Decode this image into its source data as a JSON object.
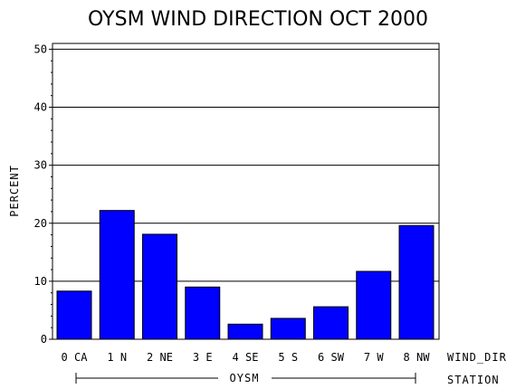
{
  "chart_data": {
    "type": "bar",
    "title": "OYSM WIND DIRECTION OCT 2000",
    "ylabel": "PERCENT",
    "xlabel": "WIND_DIR",
    "group_axis_label": "STATION",
    "group_label": "OYSM",
    "categories": [
      "0 CA",
      "1 N",
      "2 NE",
      "3 E",
      "4 SE",
      "5 S",
      "6 SW",
      "7 W",
      "8 NW"
    ],
    "values": [
      8.3,
      22.2,
      18.1,
      9.0,
      2.6,
      3.6,
      5.6,
      11.7,
      19.6
    ],
    "ylim": [
      0,
      51
    ],
    "yticks": [
      0,
      10,
      20,
      30,
      40,
      50
    ],
    "grid": true,
    "bar_color": "#0000ff"
  }
}
